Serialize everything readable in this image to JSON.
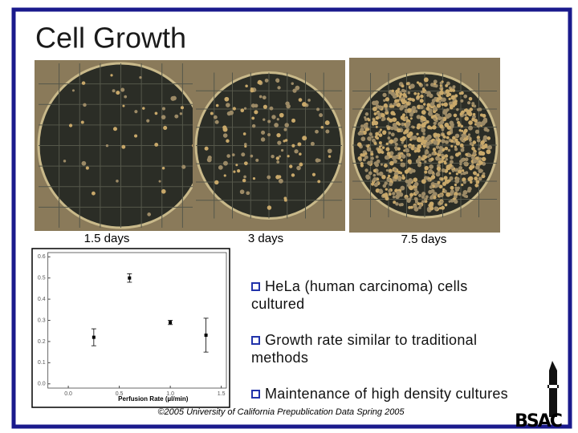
{
  "slide": {
    "title": "Cell Growth",
    "captions": [
      "1.5 days",
      "3 days",
      "7.5 days"
    ],
    "bullets": [
      "HeLa (human carcinoma) cells cultured",
      "Growth rate similar to traditional methods",
      "Maintenance of high density cultures"
    ],
    "footer": "©2005 University of California Prepublication Data Spring 2005",
    "logo": "BSAC"
  },
  "chart_data": {
    "type": "scatter",
    "x_label": "Perfusion Rate (µl/min)",
    "x": [
      0.25,
      0.6,
      1.0,
      1.35
    ],
    "series": [
      {
        "color": "#000000",
        "values": [
          0.22,
          0.5,
          0.29,
          0.23
        ],
        "errors": [
          0.04,
          0.02,
          0.01,
          0.08
        ]
      }
    ],
    "xlim": [
      -0.2,
      1.55
    ],
    "ylim": [
      -0.02,
      0.62
    ],
    "xticks": [
      {
        "value": 0,
        "label": "0.0"
      },
      0.5,
      {
        "value": 1,
        "label": "1.0"
      },
      1.5
    ],
    "yticks": [
      {
        "value": 0,
        "label": "0.0"
      },
      0.1,
      0.2,
      0.3,
      0.4,
      0.5,
      0.6
    ]
  }
}
